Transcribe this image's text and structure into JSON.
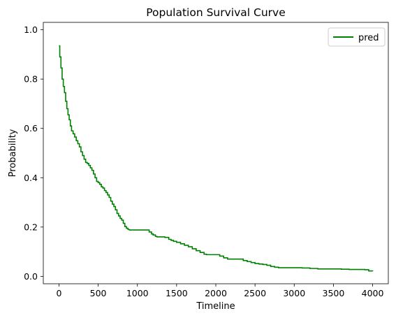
{
  "chart_data": {
    "type": "line",
    "title": "Population Survival Curve",
    "xlabel": "Timeline",
    "ylabel": "Probability",
    "xlim": [
      -200,
      4200
    ],
    "ylim": [
      -0.03,
      1.03
    ],
    "xticks": [
      0,
      500,
      1000,
      1500,
      2000,
      2500,
      3000,
      3500,
      4000
    ],
    "yticks": [
      0.0,
      0.2,
      0.4,
      0.6,
      0.8,
      1.0
    ],
    "xtick_labels": [
      "0",
      "500",
      "1000",
      "1500",
      "2000",
      "2500",
      "3000",
      "3500",
      "4000"
    ],
    "ytick_labels": [
      "0.0",
      "0.2",
      "0.4",
      "0.6",
      "0.8",
      "1.0"
    ],
    "grid": false,
    "legend_position": "top-right",
    "series": [
      {
        "name": "pred",
        "color": "#008000",
        "x": [
          0,
          10,
          25,
          40,
          55,
          70,
          85,
          100,
          115,
          130,
          145,
          160,
          180,
          200,
          220,
          240,
          260,
          280,
          300,
          320,
          340,
          360,
          380,
          400,
          420,
          440,
          460,
          480,
          500,
          520,
          540,
          560,
          580,
          600,
          620,
          640,
          660,
          680,
          700,
          720,
          740,
          760,
          780,
          800,
          820,
          840,
          860,
          880,
          900,
          920,
          940,
          960,
          1000,
          1050,
          1100,
          1150,
          1180,
          1200,
          1230,
          1250,
          1280,
          1300,
          1350,
          1400,
          1430,
          1460,
          1500,
          1550,
          1600,
          1650,
          1700,
          1750,
          1800,
          1850,
          1880,
          1900,
          1950,
          2000,
          2050,
          2100,
          2150,
          2200,
          2250,
          2300,
          2350,
          2400,
          2450,
          2500,
          2550,
          2600,
          2650,
          2700,
          2750,
          2800,
          2900,
          3000,
          3100,
          3200,
          3300,
          3400,
          3500,
          3600,
          3700,
          3800,
          3900,
          3950,
          4000
        ],
        "y": [
          0.935,
          0.89,
          0.845,
          0.8,
          0.77,
          0.745,
          0.71,
          0.68,
          0.655,
          0.635,
          0.61,
          0.59,
          0.578,
          0.565,
          0.55,
          0.538,
          0.525,
          0.505,
          0.49,
          0.475,
          0.462,
          0.458,
          0.45,
          0.44,
          0.43,
          0.415,
          0.4,
          0.385,
          0.38,
          0.373,
          0.363,
          0.358,
          0.348,
          0.34,
          0.33,
          0.32,
          0.305,
          0.293,
          0.283,
          0.27,
          0.255,
          0.245,
          0.235,
          0.228,
          0.215,
          0.202,
          0.195,
          0.19,
          0.188,
          0.188,
          0.188,
          0.188,
          0.188,
          0.188,
          0.188,
          0.18,
          0.172,
          0.168,
          0.162,
          0.16,
          0.16,
          0.16,
          0.158,
          0.15,
          0.146,
          0.142,
          0.138,
          0.132,
          0.126,
          0.12,
          0.112,
          0.104,
          0.097,
          0.09,
          0.088,
          0.088,
          0.088,
          0.088,
          0.082,
          0.075,
          0.07,
          0.07,
          0.07,
          0.07,
          0.064,
          0.06,
          0.056,
          0.052,
          0.05,
          0.048,
          0.045,
          0.04,
          0.037,
          0.035,
          0.035,
          0.035,
          0.034,
          0.032,
          0.03,
          0.03,
          0.03,
          0.029,
          0.028,
          0.028,
          0.027,
          0.022,
          0.021
        ]
      }
    ]
  }
}
